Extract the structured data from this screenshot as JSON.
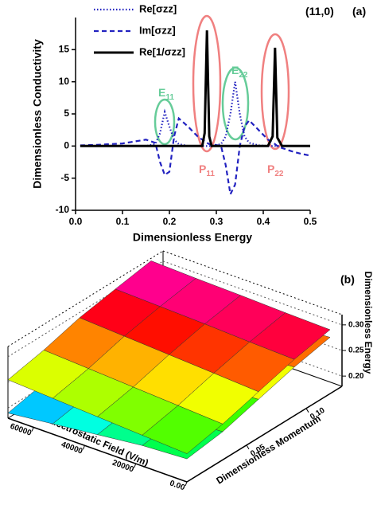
{
  "chart_data": [
    {
      "type": "line",
      "xlabel": "Dimensionless Energy",
      "ylabel": "Dimensionless Conductivity",
      "x": [
        0.01,
        0.05,
        0.1,
        0.15,
        0.17,
        0.18,
        0.19,
        0.2,
        0.21,
        0.22,
        0.24,
        0.26,
        0.27,
        0.275,
        0.28,
        0.285,
        0.29,
        0.31,
        0.32,
        0.33,
        0.34,
        0.35,
        0.36,
        0.37,
        0.39,
        0.41,
        0.42,
        0.425,
        0.43,
        0.44,
        0.46,
        0.48,
        0.5
      ],
      "series": [
        {
          "name": "Re[σzz]",
          "color": "#2222c0",
          "linestyle": "dotted",
          "values": [
            0,
            0,
            0,
            0,
            0.3,
            2,
            5.3,
            3,
            1,
            0.3,
            0,
            0,
            0,
            0,
            0,
            0,
            0,
            0.3,
            1.5,
            5,
            10,
            5,
            1.5,
            0.5,
            0.1,
            0,
            0,
            0,
            0,
            0,
            0,
            0,
            0
          ]
        },
        {
          "name": "Im[σzz]",
          "color": "#2222c0",
          "linestyle": "dashed",
          "values": [
            0.1,
            0.2,
            0.4,
            1,
            0.5,
            -2.5,
            -4.5,
            -4,
            1.5,
            4.3,
            3,
            1.5,
            1,
            0.8,
            0.5,
            0.3,
            0.3,
            0,
            -3,
            -7.5,
            -6,
            0,
            3,
            4,
            2.5,
            1,
            0.5,
            0.3,
            0,
            -0.3,
            -0.8,
            -1.2,
            -1.5
          ]
        },
        {
          "name": "Re[1/σzz]",
          "color": "#000000",
          "linestyle": "solid",
          "values": [
            0,
            0,
            0,
            0,
            0,
            0,
            0,
            0,
            0,
            0,
            0,
            0,
            0,
            2,
            18,
            1.5,
            0,
            0,
            0,
            0,
            0,
            0,
            0,
            0,
            0,
            0,
            1.5,
            15.3,
            1.3,
            0,
            0,
            0,
            0
          ]
        }
      ],
      "xlim": [
        0,
        0.5
      ],
      "xticks": [
        {
          "value": 0,
          "label": "0.0"
        },
        0.1,
        0.2,
        0.3,
        0.4,
        0.5
      ],
      "ylim": [
        -10,
        20
      ],
      "yticks": [
        -10,
        -5,
        0,
        5,
        10,
        15
      ],
      "annotations": [
        {
          "text": "(11,0)"
        },
        {
          "text": "(a)"
        },
        {
          "text": "E",
          "sub": "11",
          "color": "#66cc99"
        },
        {
          "text": "E",
          "sub": "22",
          "color": "#66cc99"
        },
        {
          "text": "P",
          "sub": "11",
          "color": "#f08080"
        },
        {
          "text": "P",
          "sub": "22",
          "color": "#f08080"
        }
      ]
    },
    {
      "type": "surface3d",
      "xlabel": "Dimensionless Momentum",
      "ylabel": "Perp. Electrostatic Field (V/m)",
      "zlabel": "Dimensionless Energy",
      "x": [
        0,
        0.03,
        0.06,
        0.09,
        0.12
      ],
      "y": [
        0,
        17500,
        35000,
        52500,
        70000
      ],
      "surfaces": [
        {
          "z": [
            [
              0.225,
              0.235,
              0.255,
              0.275,
              0.29
            ],
            [
              0.22,
              0.23,
              0.25,
              0.27,
              0.285
            ],
            [
              0.21,
              0.222,
              0.243,
              0.263,
              0.28
            ],
            [
              0.2,
              0.213,
              0.235,
              0.257,
              0.275
            ],
            [
              0.19,
              0.205,
              0.228,
              0.25,
              0.27
            ]
          ]
        },
        {
          "z": [
            [
              0.235,
              0.25,
              0.27,
              0.29,
              0.305
            ],
            [
              0.24,
              0.255,
              0.275,
              0.293,
              0.307
            ],
            [
              0.245,
              0.26,
              0.28,
              0.297,
              0.31
            ],
            [
              0.25,
              0.265,
              0.285,
              0.3,
              0.312
            ],
            [
              0.255,
              0.27,
              0.29,
              0.303,
              0.315
            ]
          ]
        }
      ],
      "xlim": [
        0,
        0.13
      ],
      "xticks": [
        0.05,
        {
          "value": 0.1,
          "label": "0.10"
        }
      ],
      "ylim": [
        0,
        70000
      ],
      "yticks": [
        {
          "value": 0,
          "label": "0.00"
        },
        20000,
        40000,
        60000
      ],
      "zlim": [
        0.18,
        0.32
      ],
      "zticks": [
        {
          "value": 0.2,
          "label": "0.20"
        },
        0.25,
        {
          "value": 0.3,
          "label": "0.30"
        }
      ],
      "colormap": "rainbow",
      "annotations": [
        {
          "text": "(b)"
        }
      ]
    }
  ]
}
